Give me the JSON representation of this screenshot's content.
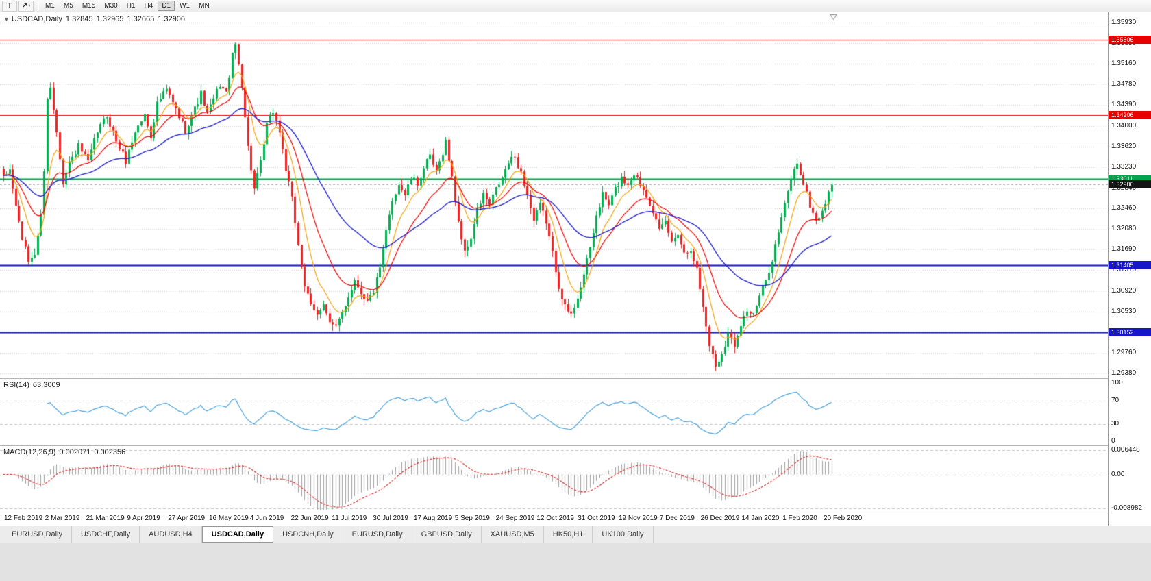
{
  "toolbar": {
    "tools": [
      {
        "name": "text-tool",
        "glyph": "T"
      },
      {
        "name": "shapes-tool",
        "glyph": "↗",
        "caret": "▾"
      }
    ],
    "timeframes": [
      {
        "label": "M1",
        "active": false
      },
      {
        "label": "M5",
        "active": false
      },
      {
        "label": "M15",
        "active": false
      },
      {
        "label": "M30",
        "active": false
      },
      {
        "label": "H1",
        "active": false
      },
      {
        "label": "H4",
        "active": false
      },
      {
        "label": "D1",
        "active": true
      },
      {
        "label": "W1",
        "active": false
      },
      {
        "label": "MN",
        "active": false
      }
    ]
  },
  "price_pane": {
    "collapse_arrow": "▼",
    "title": "USDCAD,Daily",
    "open": "1.32845",
    "high": "1.32965",
    "low": "1.32665",
    "close": "1.32906",
    "axis_labels": [
      "1.35930",
      "1.35550",
      "1.35160",
      "1.34780",
      "1.34390",
      "1.34000",
      "1.33620",
      "1.33230",
      "1.32840",
      "1.32460",
      "1.32080",
      "1.31690",
      "1.31310",
      "1.30920",
      "1.30530",
      "1.30140",
      "1.29760",
      "1.29380"
    ],
    "badges": [
      {
        "label": "1.35606",
        "price": 1.35606,
        "type": "resistance-upper",
        "color": "#e80000"
      },
      {
        "label": "1.34206",
        "price": 1.34206,
        "type": "resistance-lower",
        "color": "#e80000"
      },
      {
        "label": "1.33011",
        "price": 1.33011,
        "type": "pivot-green",
        "color": "#00a44c"
      },
      {
        "label": "1.32906",
        "price": 1.32906,
        "type": "current-price",
        "color": "#141414"
      },
      {
        "label": "1.31405",
        "price": 1.31405,
        "type": "support-upper",
        "color": "#1616c8"
      },
      {
        "label": "1.30152",
        "price": 1.30152,
        "type": "support-lower",
        "color": "#1616c8"
      }
    ]
  },
  "rsi_pane": {
    "label": "RSI(14)",
    "value": "63.3009",
    "axis_labels": [
      {
        "text": "100",
        "v": 100
      },
      {
        "text": "70",
        "v": 70
      },
      {
        "text": "30",
        "v": 30
      },
      {
        "text": "0",
        "v": 0
      }
    ]
  },
  "macd_pane": {
    "label": "MACD(12,26,9)",
    "main_value": "0.002071",
    "signal_value": "0.002356",
    "axis_labels": [
      {
        "text": "0.006448",
        "v": 0.006448
      },
      {
        "text": "0.00",
        "v": 0
      },
      {
        "text": "-0.008982",
        "v": -0.008982
      }
    ]
  },
  "date_axis": [
    "12 Feb 2019",
    "2 Mar 2019",
    "21 Mar 2019",
    "9 Apr 2019",
    "27 Apr 2019",
    "16 May 2019",
    "4 Jun 2019",
    "22 Jun 2019",
    "11 Jul 2019",
    "30 Jul 2019",
    "17 Aug 2019",
    "5 Sep 2019",
    "24 Sep 2019",
    "12 Oct 2019",
    "31 Oct 2019",
    "19 Nov 2019",
    "7 Dec 2019",
    "26 Dec 2019",
    "14 Jan 2020",
    "1 Feb 2020",
    "20 Feb 2020"
  ],
  "tabs": [
    {
      "label": "EURUSD,Daily",
      "active": false
    },
    {
      "label": "USDCHF,Daily",
      "active": false
    },
    {
      "label": "AUDUSD,H4",
      "active": false
    },
    {
      "label": "USDCAD,Daily",
      "active": true
    },
    {
      "label": "USDCNH,Daily",
      "active": false
    },
    {
      "label": "EURUSD,Daily",
      "active": false
    },
    {
      "label": "GBPUSD,Daily",
      "active": false
    },
    {
      "label": "XAUUSD,M5",
      "active": false
    },
    {
      "label": "HK50,H1",
      "active": false
    },
    {
      "label": "UK100,Daily",
      "active": false
    }
  ],
  "colors": {
    "bull_candle": "#00b050",
    "bear_candle": "#ee2222",
    "ma_fast": "#f2a30a",
    "ma_mid": "#ee0000",
    "ma_slow": "#2323cc",
    "rsi_line": "#4aa2dc",
    "macd_histogram": "#a0a0a0",
    "macd_signal": "#e02020",
    "grid": "#cfcfcf",
    "current_price_line": "#b0b0b0"
  },
  "chart_data": {
    "type": "candlestick",
    "symbol": "USDCAD",
    "timeframe": "Daily",
    "bar_count": 265,
    "last_close": 1.32906,
    "y_range": {
      "top": 1.3593,
      "bottom": 1.2938
    },
    "x_range": {
      "start": "12 Feb 2019",
      "end": "20 Feb 2020"
    },
    "horizontal_levels": [
      {
        "price": 1.35606,
        "color": "#e80000",
        "width": 1.2
      },
      {
        "price": 1.34206,
        "color": "#e80000",
        "width": 1.2
      },
      {
        "price": 1.33011,
        "color": "#00a44c",
        "width": 1.8
      },
      {
        "price": 1.31405,
        "color": "#1616c8",
        "width": 1.8
      },
      {
        "price": 1.30152,
        "color": "#1616c8",
        "width": 1.8
      }
    ],
    "moving_averages": [
      {
        "name": "fast",
        "period": 8,
        "color": "#f2a30a"
      },
      {
        "name": "mid",
        "period": 18,
        "color": "#ee0000"
      },
      {
        "name": "slow",
        "period": 45,
        "color": "#2323cc"
      }
    ],
    "indicators": {
      "rsi": {
        "period": 14,
        "current": 63.3009,
        "levels": [
          70,
          30
        ],
        "range": [
          0,
          100
        ]
      },
      "macd": {
        "fast": 12,
        "slow": 26,
        "signal": 9,
        "current_main": 0.002071,
        "current_signal": 0.002356,
        "range": [
          -0.008982,
          0.006448
        ]
      }
    },
    "price_anchors": [
      [
        0,
        1.3302
      ],
      [
        2,
        1.3318
      ],
      [
        4,
        1.325
      ],
      [
        6,
        1.319
      ],
      [
        8,
        1.3148
      ],
      [
        10,
        1.3162
      ],
      [
        12,
        1.323
      ],
      [
        13,
        1.332
      ],
      [
        14,
        1.3452
      ],
      [
        15,
        1.347
      ],
      [
        17,
        1.3392
      ],
      [
        19,
        1.3296
      ],
      [
        21,
        1.333
      ],
      [
        24,
        1.3362
      ],
      [
        27,
        1.3332
      ],
      [
        30,
        1.339
      ],
      [
        33,
        1.342
      ],
      [
        36,
        1.3372
      ],
      [
        39,
        1.3334
      ],
      [
        42,
        1.339
      ],
      [
        45,
        1.342
      ],
      [
        47,
        1.3382
      ],
      [
        49,
        1.3442
      ],
      [
        52,
        1.3468
      ],
      [
        55,
        1.343
      ],
      [
        58,
        1.3392
      ],
      [
        61,
        1.3432
      ],
      [
        63,
        1.346
      ],
      [
        65,
        1.3422
      ],
      [
        67,
        1.345
      ],
      [
        69,
        1.3478
      ],
      [
        71,
        1.346
      ],
      [
        73,
        1.353
      ],
      [
        74,
        1.3552
      ],
      [
        76,
        1.3478
      ],
      [
        78,
        1.336
      ],
      [
        80,
        1.3282
      ],
      [
        82,
        1.333
      ],
      [
        84,
        1.3402
      ],
      [
        86,
        1.3428
      ],
      [
        88,
        1.339
      ],
      [
        90,
        1.332
      ],
      [
        92,
        1.3262
      ],
      [
        94,
        1.318
      ],
      [
        96,
        1.3102
      ],
      [
        98,
        1.3062
      ],
      [
        100,
        1.3046
      ],
      [
        102,
        1.3072
      ],
      [
        104,
        1.3032
      ],
      [
        106,
        1.3022
      ],
      [
        108,
        1.3052
      ],
      [
        110,
        1.3082
      ],
      [
        112,
        1.3112
      ],
      [
        114,
        1.309
      ],
      [
        116,
        1.3072
      ],
      [
        118,
        1.3092
      ],
      [
        120,
        1.3132
      ],
      [
        122,
        1.3202
      ],
      [
        124,
        1.3262
      ],
      [
        126,
        1.3292
      ],
      [
        128,
        1.3272
      ],
      [
        130,
        1.3302
      ],
      [
        132,
        1.3292
      ],
      [
        134,
        1.3322
      ],
      [
        136,
        1.3342
      ],
      [
        138,
        1.3312
      ],
      [
        140,
        1.3352
      ],
      [
        141,
        1.3372
      ],
      [
        143,
        1.3302
      ],
      [
        145,
        1.3222
      ],
      [
        147,
        1.3162
      ],
      [
        149,
        1.3192
      ],
      [
        151,
        1.3242
      ],
      [
        153,
        1.3272
      ],
      [
        155,
        1.3252
      ],
      [
        157,
        1.3282
      ],
      [
        159,
        1.3302
      ],
      [
        161,
        1.3332
      ],
      [
        163,
        1.3342
      ],
      [
        165,
        1.3312
      ],
      [
        167,
        1.3272
      ],
      [
        169,
        1.3222
      ],
      [
        171,
        1.3252
      ],
      [
        173,
        1.3222
      ],
      [
        175,
        1.3162
      ],
      [
        177,
        1.3102
      ],
      [
        179,
        1.3062
      ],
      [
        181,
        1.3046
      ],
      [
        183,
        1.3082
      ],
      [
        185,
        1.3122
      ],
      [
        187,
        1.3172
      ],
      [
        189,
        1.3232
      ],
      [
        191,
        1.3272
      ],
      [
        193,
        1.3252
      ],
      [
        195,
        1.3282
      ],
      [
        197,
        1.3302
      ],
      [
        199,
        1.3292
      ],
      [
        201,
        1.3312
      ],
      [
        203,
        1.3292
      ],
      [
        205,
        1.3272
      ],
      [
        207,
        1.3242
      ],
      [
        209,
        1.3202
      ],
      [
        211,
        1.3222
      ],
      [
        213,
        1.3182
      ],
      [
        215,
        1.3202
      ],
      [
        217,
        1.3162
      ],
      [
        219,
        1.3172
      ],
      [
        221,
        1.3132
      ],
      [
        223,
        1.3062
      ],
      [
        225,
        1.2992
      ],
      [
        227,
        1.2952
      ],
      [
        229,
        1.2976
      ],
      [
        231,
        1.3012
      ],
      [
        233,
        1.2992
      ],
      [
        235,
        1.3032
      ],
      [
        237,
        1.3056
      ],
      [
        239,
        1.3046
      ],
      [
        241,
        1.3082
      ],
      [
        243,
        1.3112
      ],
      [
        245,
        1.3152
      ],
      [
        247,
        1.3202
      ],
      [
        249,
        1.3252
      ],
      [
        251,
        1.3302
      ],
      [
        253,
        1.3332
      ],
      [
        255,
        1.3292
      ],
      [
        257,
        1.3252
      ],
      [
        259,
        1.3222
      ],
      [
        261,
        1.3242
      ],
      [
        263,
        1.3272
      ],
      [
        264,
        1.3291
      ]
    ]
  }
}
